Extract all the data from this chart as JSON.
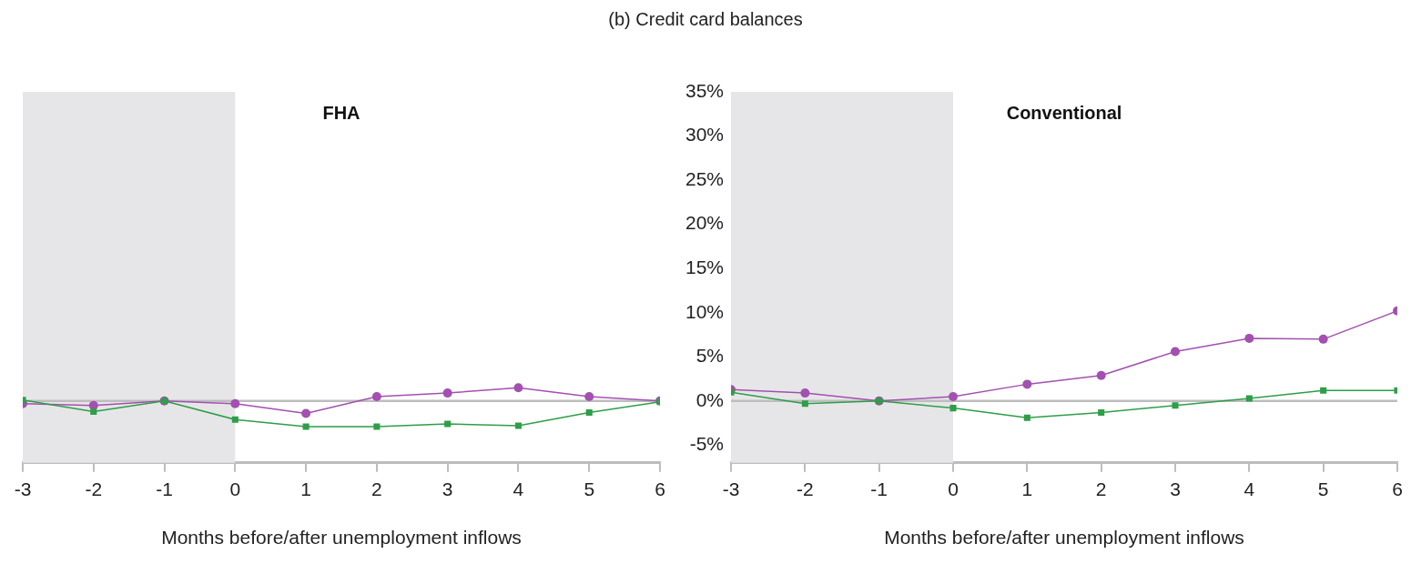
{
  "chart_data": [
    {
      "type": "line",
      "title": "FHA",
      "xlabel": "Months before/after unemployment inflows",
      "annotations": [
        "(b) Credit card balances"
      ],
      "x": [
        -3,
        -2,
        -1,
        0,
        1,
        2,
        3,
        4,
        5,
        6
      ],
      "xlim": [
        -3,
        6
      ],
      "xticks": [
        -3,
        -2,
        -1,
        0,
        1,
        2,
        3,
        4,
        5,
        6
      ],
      "ylim": [
        -7,
        35
      ],
      "tick_labels": "x",
      "grid": false,
      "legend": false,
      "series": [
        {
          "color": "#a350b0",
          "marker": "circle",
          "values": [
            -0.3,
            -0.5,
            0,
            -0.3,
            -1.4,
            0.5,
            0.9,
            1.5,
            0.5,
            0
          ]
        },
        {
          "color": "#2e9e48",
          "marker": "square",
          "values": [
            0.1,
            -1.2,
            0,
            -2.1,
            -2.9,
            -2.9,
            -2.6,
            -2.8,
            -1.3,
            -0.1
          ]
        }
      ],
      "bands": [
        {
          "axis": "x",
          "from": -3,
          "to": 0,
          "color": "#e6e6e8"
        }
      ],
      "ref_lines": [
        {
          "axis": "y",
          "value": 0,
          "color": "#bdbdbd"
        }
      ]
    },
    {
      "type": "line",
      "title": "Conventional",
      "xlabel": "Months before/after unemployment inflows",
      "x": [
        -3,
        -2,
        -1,
        0,
        1,
        2,
        3,
        4,
        5,
        6
      ],
      "xlim": [
        -3,
        6
      ],
      "xticks": [
        -3,
        -2,
        -1,
        0,
        1,
        2,
        3,
        4,
        5,
        6
      ],
      "ylim": [
        -7,
        35
      ],
      "yticks": [
        {
          "value": -5,
          "label": "-5%"
        },
        {
          "value": 0,
          "label": "0%"
        },
        {
          "value": 5,
          "label": "5%"
        },
        {
          "value": 10,
          "label": "10%"
        },
        {
          "value": 15,
          "label": "15%"
        },
        {
          "value": 20,
          "label": "20%"
        },
        {
          "value": 25,
          "label": "25%"
        },
        {
          "value": 30,
          "label": "30%"
        },
        {
          "value": 35,
          "label": "35%"
        }
      ],
      "grid": false,
      "legend": false,
      "series": [
        {
          "color": "#a350b0",
          "marker": "circle",
          "values": [
            1.3,
            0.9,
            0,
            0.5,
            1.9,
            2.9,
            5.6,
            7.1,
            7.0,
            10.2
          ]
        },
        {
          "color": "#2e9e48",
          "marker": "square",
          "values": [
            1.0,
            -0.3,
            0,
            -0.8,
            -1.9,
            -1.3,
            -0.5,
            0.3,
            1.2,
            1.2
          ]
        }
      ],
      "bands": [
        {
          "axis": "x",
          "from": -3,
          "to": 0,
          "color": "#e6e6e8"
        }
      ],
      "ref_lines": [
        {
          "axis": "y",
          "value": 0,
          "color": "#bdbdbd"
        }
      ]
    }
  ]
}
